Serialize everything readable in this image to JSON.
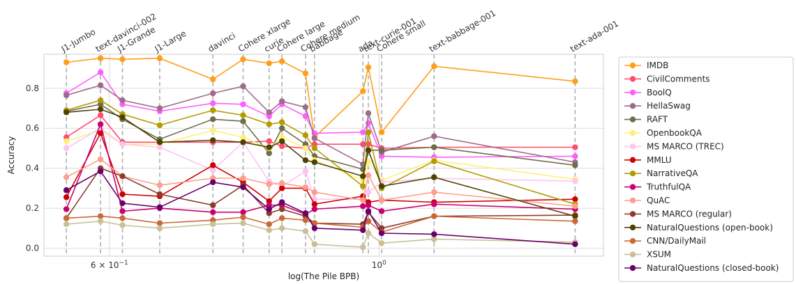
{
  "chart_data": {
    "type": "line",
    "xlabel": "log(The Pile BPB)",
    "ylabel": "Accuracy",
    "xscale": "log",
    "xlim": [
      0.53,
      1.53
    ],
    "ylim": [
      -0.04,
      0.97
    ],
    "yticks": [
      0.0,
      0.2,
      0.4,
      0.6,
      0.8
    ],
    "ytick_labels": [
      "0.0",
      "0.2",
      "0.4",
      "0.6",
      "0.8"
    ],
    "xticks": [
      {
        "value": 0.6,
        "label_base": "6 × 10",
        "label_exp": "−1"
      },
      {
        "value": 1.0,
        "label_base": "10",
        "label_exp": "0"
      }
    ],
    "grid": true,
    "legend_position": "outside-right",
    "models": [
      {
        "name": "J1-Jumbo",
        "x": 0.553
      },
      {
        "name": "text-davinci-002",
        "x": 0.59
      },
      {
        "name": "J1-Grande",
        "x": 0.615
      },
      {
        "name": "J1-Large",
        "x": 0.66
      },
      {
        "name": "davinci",
        "x": 0.73
      },
      {
        "name": "Cohere xlarge",
        "x": 0.773
      },
      {
        "name": "curie",
        "x": 0.812
      },
      {
        "name": "Cohere large",
        "x": 0.832
      },
      {
        "name": "Cohere medium",
        "x": 0.87
      },
      {
        "name": "babbage",
        "x": 0.885
      },
      {
        "name": "ada",
        "x": 0.97
      },
      {
        "name": "text-curie-001",
        "x": 0.98
      },
      {
        "name": "Cohere small",
        "x": 1.005
      },
      {
        "name": "text-babbage-001",
        "x": 1.11
      },
      {
        "name": "text-ada-001",
        "x": 1.45
      }
    ],
    "series": [
      {
        "name": "IMDB",
        "color": "#ff9e1b",
        "values": [
          0.93,
          0.95,
          0.945,
          0.95,
          0.845,
          0.945,
          0.925,
          0.935,
          0.875,
          0.555,
          0.785,
          0.905,
          0.58,
          0.91,
          0.835
        ]
      },
      {
        "name": "CivilComments",
        "color": "#ff4d6d",
        "values": [
          0.555,
          0.665,
          0.53,
          0.53,
          0.53,
          0.53,
          0.535,
          0.51,
          0.5,
          0.52,
          0.52,
          0.52,
          0.5,
          0.505,
          0.505
        ]
      },
      {
        "name": "BoolQ",
        "color": "#ff5eff",
        "values": [
          0.775,
          0.88,
          0.72,
          0.685,
          0.725,
          0.72,
          0.66,
          0.72,
          0.66,
          0.575,
          0.58,
          0.625,
          0.46,
          0.455,
          0.46
        ]
      },
      {
        "name": "HellaSwag",
        "color": "#9e6b8b",
        "values": [
          0.765,
          0.815,
          0.74,
          0.7,
          0.775,
          0.81,
          0.68,
          0.735,
          0.705,
          0.55,
          0.42,
          0.675,
          0.48,
          0.56,
          0.43
        ]
      },
      {
        "name": "RAFT",
        "color": "#6e6e4c",
        "values": [
          0.685,
          0.72,
          0.645,
          0.545,
          0.645,
          0.635,
          0.475,
          0.6,
          0.52,
          0.46,
          0.395,
          0.49,
          0.49,
          0.505,
          0.415
        ]
      },
      {
        "name": "OpenbookQA",
        "color": "#fff07a",
        "values": [
          0.535,
          0.59,
          0.52,
          0.52,
          0.59,
          0.555,
          0.5,
          0.555,
          0.5,
          0.44,
          0.34,
          0.43,
          0.34,
          0.44,
          0.345
        ]
      },
      {
        "name": "MS MARCO (TREC)",
        "color": "#ffc4f2",
        "values": [
          0.5,
          0.6,
          0.52,
          0.505,
          0.39,
          0.53,
          0.335,
          0.31,
          0.385,
          0.245,
          0.245,
          0.28,
          0.33,
          0.35,
          0.335
        ]
      },
      {
        "name": "MMLU",
        "color": "#d00000",
        "values": [
          0.255,
          0.575,
          0.27,
          0.26,
          0.415,
          0.33,
          0.235,
          0.3,
          0.3,
          0.22,
          0.26,
          0.23,
          0.24,
          0.23,
          0.245
        ]
      },
      {
        "name": "NarrativeQA",
        "color": "#b39b00",
        "values": [
          0.69,
          0.74,
          0.67,
          0.615,
          0.69,
          0.665,
          0.62,
          0.63,
          0.565,
          0.5,
          0.31,
          0.58,
          0.3,
          0.435,
          0.22
        ]
      },
      {
        "name": "TruthfulQA",
        "color": "#c9006f",
        "values": [
          0.195,
          0.62,
          0.185,
          0.2,
          0.18,
          0.18,
          0.215,
          0.215,
          0.17,
          0.195,
          0.21,
          0.215,
          0.185,
          0.22,
          0.195
        ]
      },
      {
        "name": "QuAC",
        "color": "#ff9e8f",
        "values": [
          0.355,
          0.445,
          0.36,
          0.315,
          0.35,
          0.35,
          0.32,
          0.325,
          0.305,
          0.28,
          0.24,
          0.365,
          0.24,
          0.28,
          0.21
        ]
      },
      {
        "name": "MS MARCO (regular)",
        "color": "#8e3b2e",
        "values": [
          0.15,
          0.4,
          0.36,
          0.27,
          0.215,
          0.315,
          0.175,
          0.195,
          0.16,
          0.125,
          0.12,
          0.18,
          0.1,
          0.16,
          0.165
        ]
      },
      {
        "name": "NaturalQuestions (open-book)",
        "color": "#4d4300",
        "values": [
          0.68,
          0.695,
          0.655,
          0.53,
          0.54,
          0.53,
          0.505,
          0.535,
          0.44,
          0.43,
          0.36,
          0.49,
          0.31,
          0.355,
          0.16
        ]
      },
      {
        "name": "CNN/DailyMail",
        "color": "#c86a36",
        "values": [
          0.15,
          0.16,
          0.15,
          0.125,
          0.14,
          0.155,
          0.12,
          0.15,
          0.14,
          0.125,
          0.105,
          0.135,
          0.08,
          0.16,
          0.135
        ]
      },
      {
        "name": "XSUM",
        "color": "#c9bf98",
        "values": [
          0.12,
          0.135,
          0.115,
          0.1,
          0.12,
          0.125,
          0.09,
          0.1,
          0.085,
          0.02,
          0.005,
          0.075,
          0.025,
          0.045,
          0.03
        ]
      },
      {
        "name": "NaturalQuestions (closed-book)",
        "color": "#6b006b",
        "values": [
          0.29,
          0.385,
          0.225,
          0.205,
          0.33,
          0.305,
          0.195,
          0.23,
          0.175,
          0.1,
          0.09,
          0.185,
          0.075,
          0.07,
          0.02
        ]
      }
    ]
  }
}
